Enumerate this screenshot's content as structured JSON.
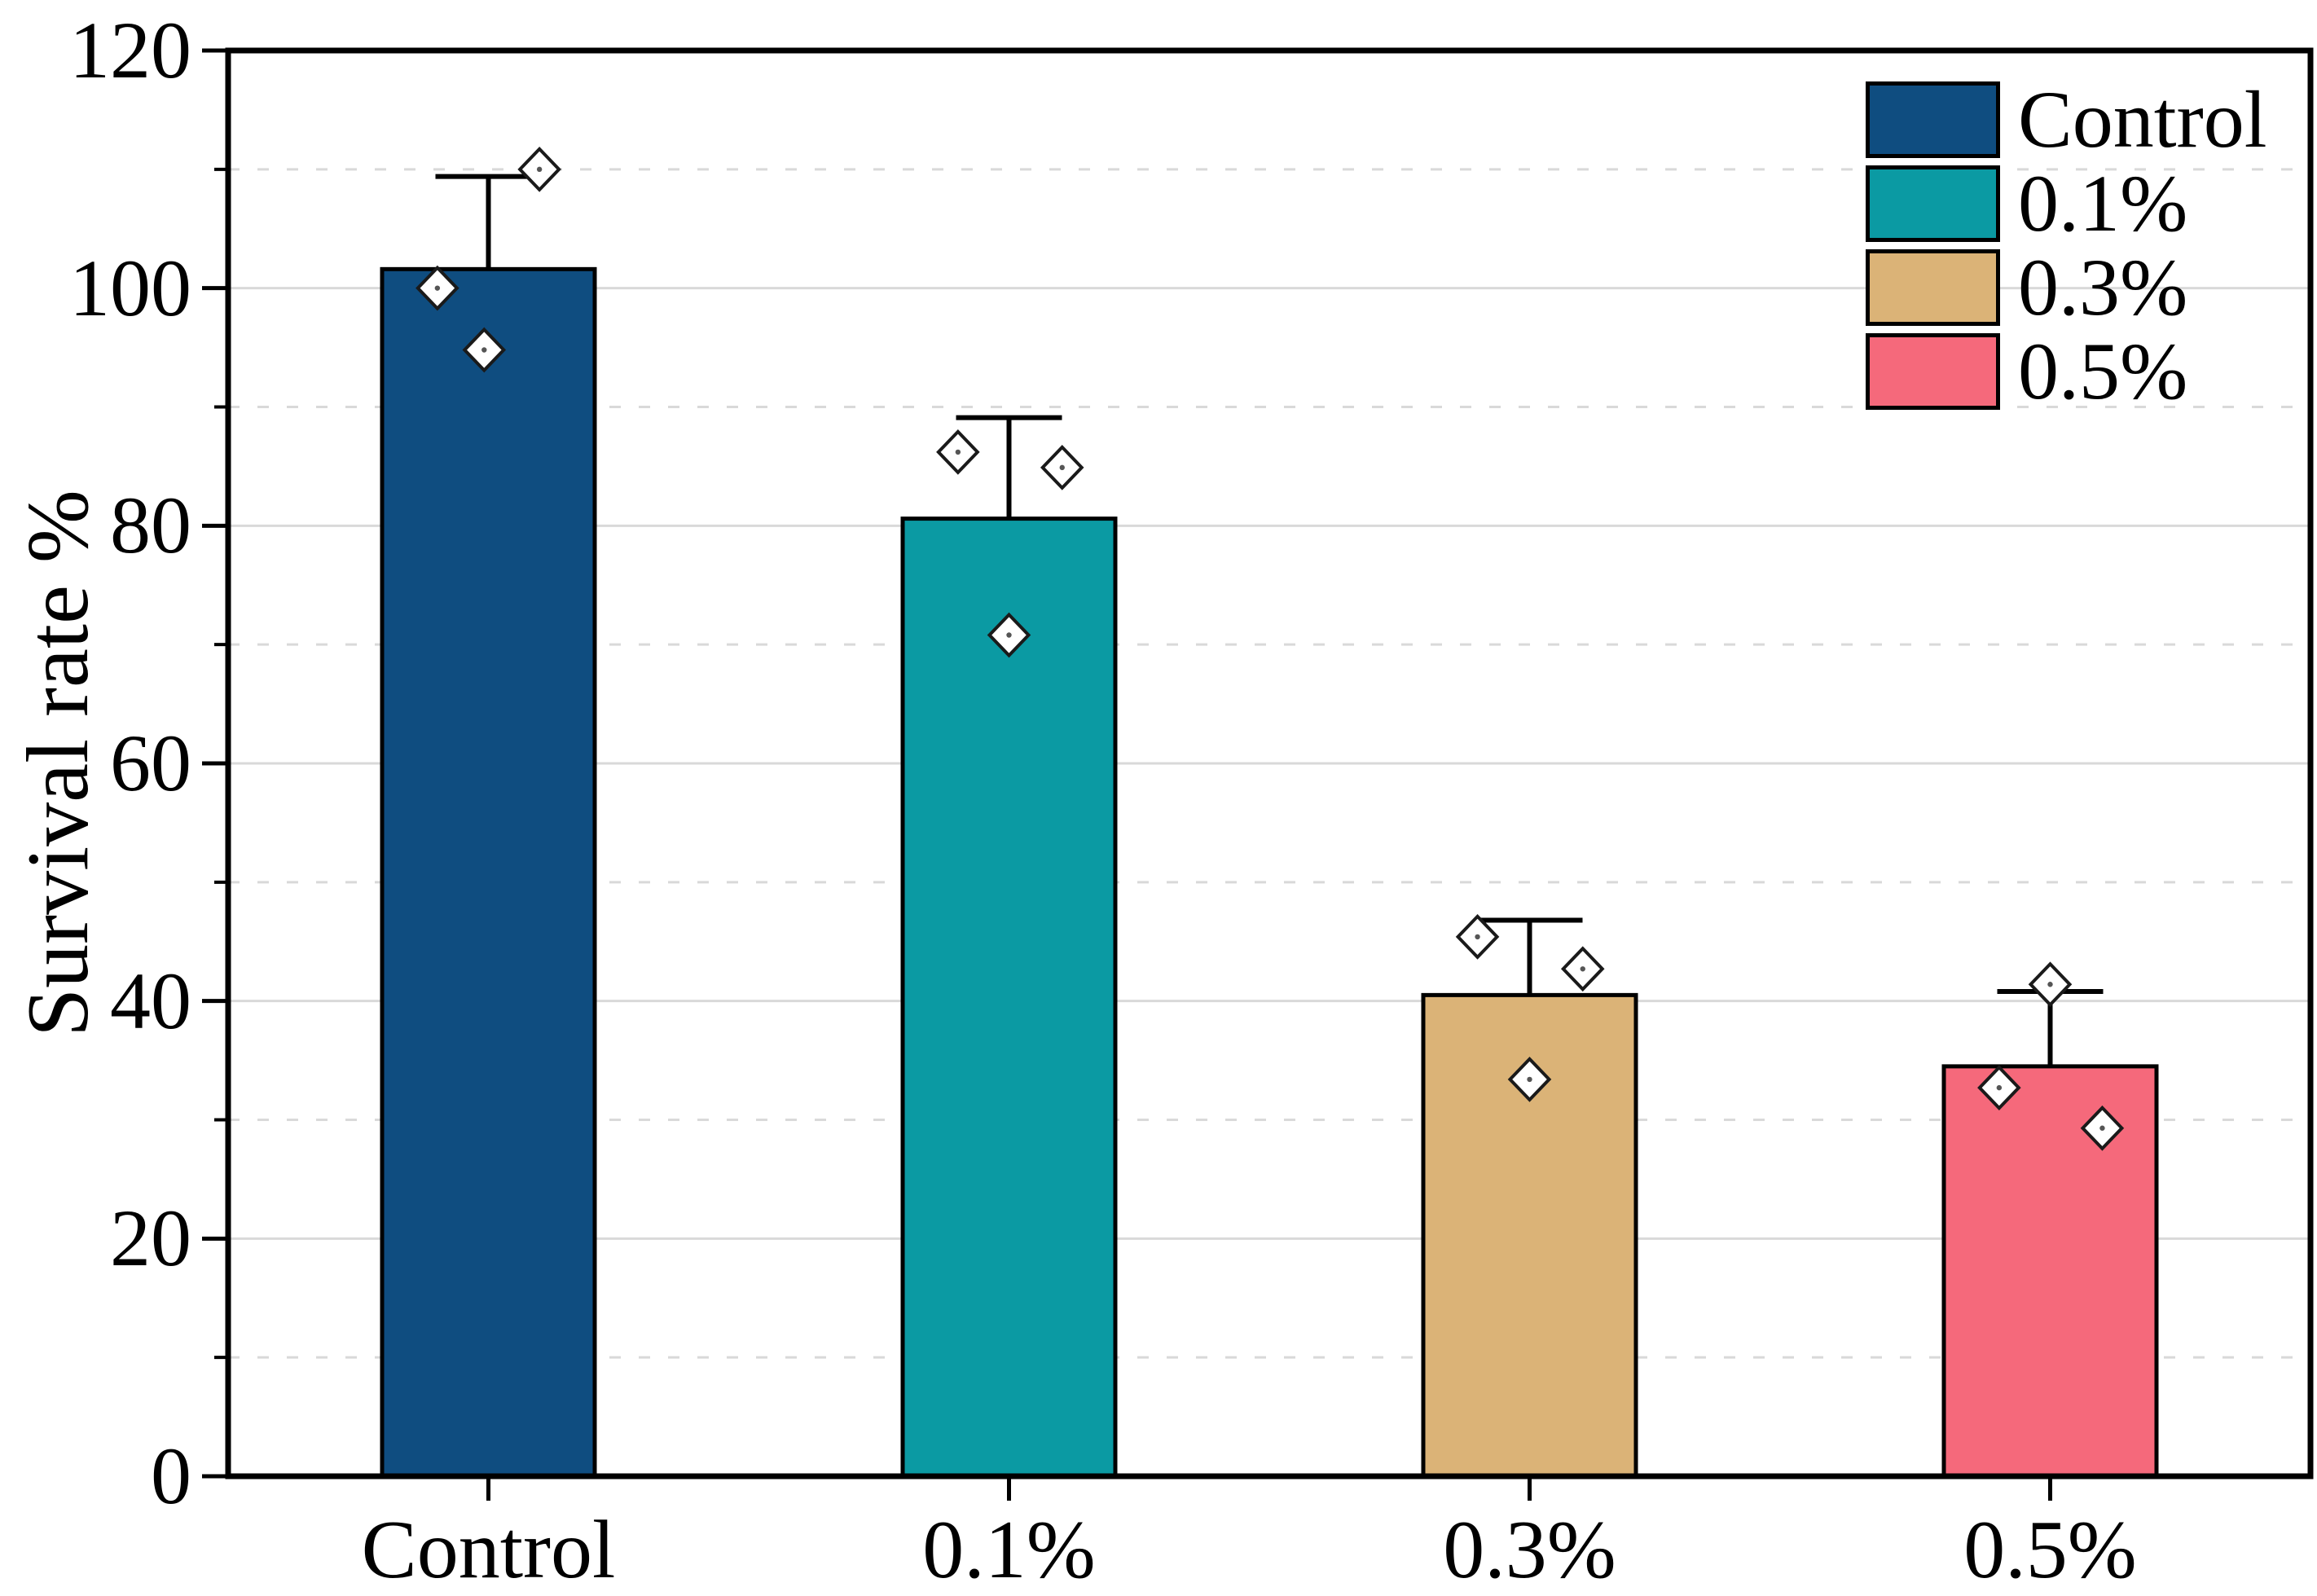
{
  "chart_data": {
    "type": "bar",
    "title": "",
    "xlabel": "",
    "ylabel": "Survival rate %",
    "categories": [
      "Control",
      "0.1%",
      "0.3%",
      "0.5%"
    ],
    "series": [
      {
        "name": "Survival rate %",
        "values": [
          101.6,
          80.6,
          40.5,
          34.5
        ],
        "sd": [
          7.8,
          8.5,
          6.3,
          6.3
        ]
      }
    ],
    "individual_points": [
      [
        110.0,
        100.0,
        94.8
      ],
      [
        86.2,
        84.9,
        70.8
      ],
      [
        45.4,
        42.7,
        33.4
      ],
      [
        41.4,
        32.7,
        29.3
      ]
    ],
    "point_x_offsets": [
      [
        0.24,
        -0.24,
        -0.02
      ],
      [
        -0.24,
        0.25,
        0.0
      ],
      [
        -0.245,
        0.25,
        0.0
      ],
      [
        0.0,
        -0.24,
        0.245
      ]
    ],
    "bar_colors": [
      "#0F4D80",
      "#0B9AA3",
      "#DBB377",
      "#F5697B"
    ],
    "ylim": [
      0,
      120
    ],
    "y_major_step": 20,
    "y_minor_step": 10,
    "y_tick_labels": [
      "0",
      "20",
      "40",
      "60",
      "80",
      "100",
      "120"
    ],
    "grid": {
      "major": "solid",
      "minor": "dashed",
      "color": "#D9D9D9"
    },
    "error_bar": "+1 SD with cap",
    "marker": "open diamond with center dot",
    "marker_fill": "#FFFFFF",
    "axis_color": "#000000",
    "legend": {
      "position": "top-right",
      "entries": [
        {
          "label": "Control",
          "color": "#0F4D80"
        },
        {
          "label": "0.1%",
          "color": "#0B9AA3"
        },
        {
          "label": "0.3%",
          "color": "#DBB377"
        },
        {
          "label": "0.5%",
          "color": "#F5697B"
        }
      ]
    }
  }
}
